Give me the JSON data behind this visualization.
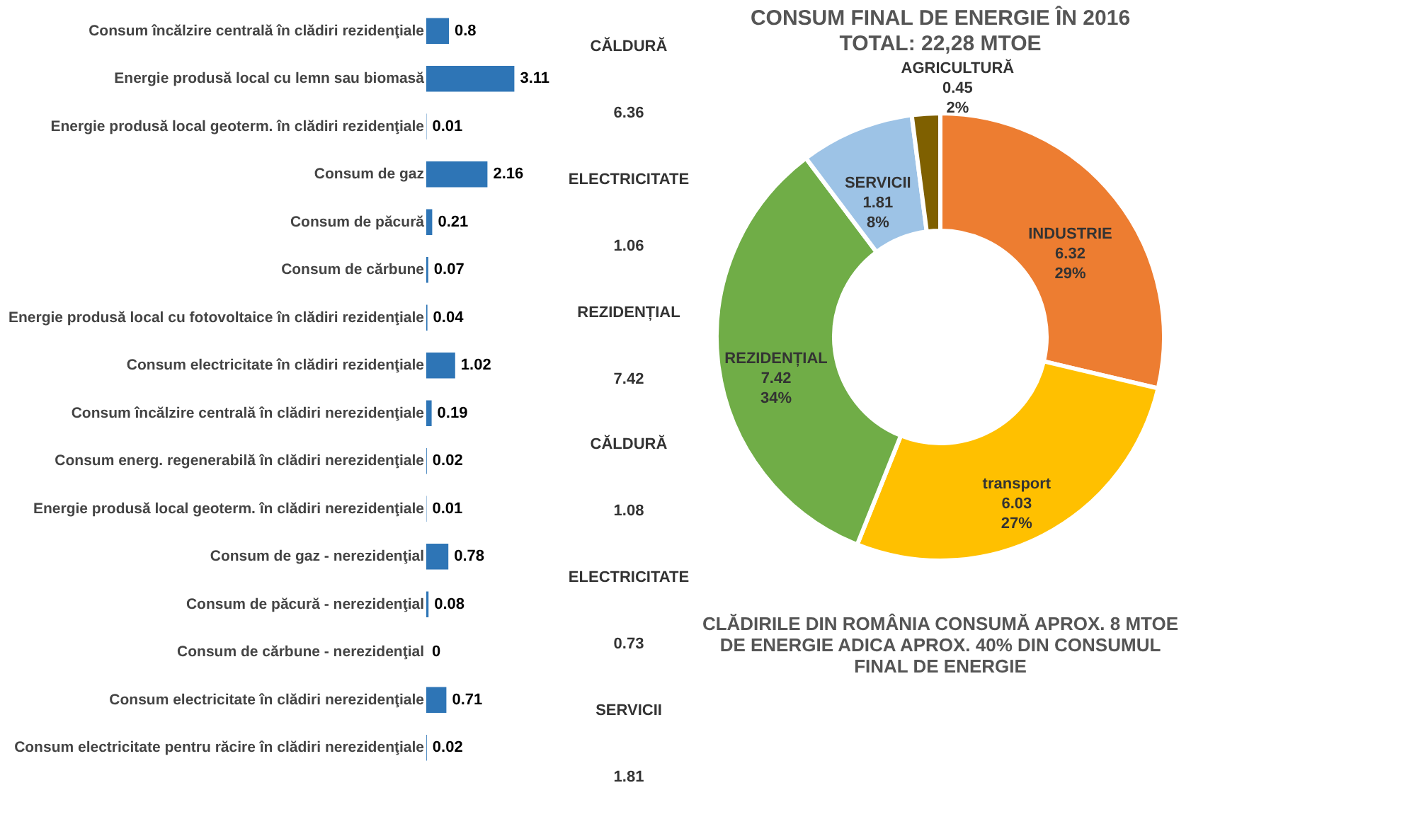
{
  "chart_data": [
    {
      "type": "bar",
      "orientation": "horizontal",
      "data_labels": true,
      "categories": [
        "Consum încălzire centrală în clădiri rezidenţiale",
        "Energie produsă local cu lemn sau biomasă",
        "Energie produsă local geoterm. în clădiri rezidenţiale",
        "Consum de gaz",
        "Consum de păcură",
        "Consum de cărbune",
        "Energie produsă local cu fotovoltaice în clădiri rezidenţiale",
        "Consum electricitate în clădiri rezidenţiale",
        "Consum încălzire centrală în clădiri nerezidenţiale",
        "Consum energ. regenerabilă în clădiri nerezidenţiale",
        "Energie produsă local geoterm. în clădiri nerezidenţiale",
        "Consum de gaz - nerezidenţial",
        "Consum de păcură - nerezidenţial",
        "Consum de cărbune - nerezidenţial",
        "Consum electricitate în clădiri nerezidenţiale",
        "Consum electricitate pentru răcire în clădiri nerezidenţiale"
      ],
      "values": [
        0.8,
        3.11,
        0.01,
        2.16,
        0.21,
        0.07,
        0.04,
        1.02,
        0.19,
        0.02,
        0.01,
        0.78,
        0.08,
        0,
        0.71,
        0.02
      ],
      "color": "#2e75b6",
      "annotations": [
        "CĂLDURĂ",
        "6.36",
        "ELECTRICITATE",
        "1.06",
        "REZIDENȚIAL",
        "7.42",
        "CĂLDURĂ",
        "1.08",
        "ELECTRICITATE",
        "0.73",
        "SERVICII",
        "1.81"
      ]
    },
    {
      "type": "donut",
      "title": "CONSUM FINAL DE ENERGIE ÎN 2016",
      "subtitle": "TOTAL: 22,28 MTOE",
      "categories": [
        "INDUSTRIE",
        "transport",
        "REZIDENȚIAL",
        "SERVICII",
        "AGRICULTURĂ"
      ],
      "values": [
        6.32,
        6.03,
        7.42,
        1.81,
        0.45
      ],
      "value_labels": [
        "6.32\n29%",
        "6.03\n27%",
        "7.42\n34%",
        "1.81\n8%",
        "0.45\n2%"
      ],
      "colors": [
        "#ed7d31",
        "#ffc000",
        "#70ad47",
        "#9dc3e6",
        "#7f6000"
      ],
      "annotations": [
        "CLĂDIRILE DIN ROMÂNIA CONSUMĂ APROX. 8 MTOE DE ENERGIE ADICA APROX. 40% DIN CONSUMUL FINAL DE ENERGIE"
      ]
    }
  ]
}
